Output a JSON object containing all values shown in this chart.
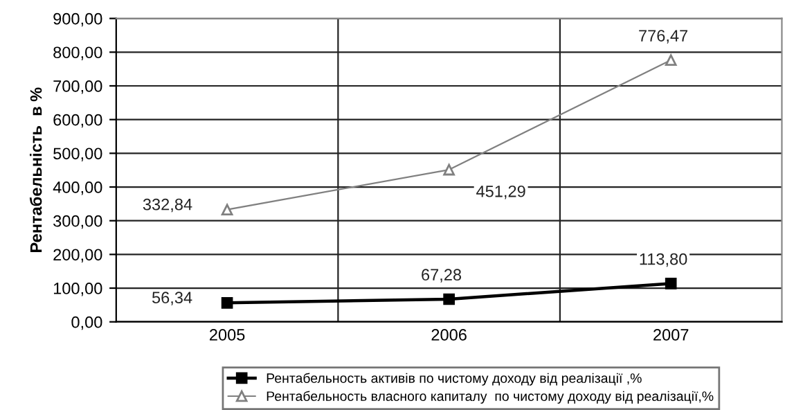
{
  "chart_data": {
    "type": "line",
    "ylabel": "Рентабельність  в %",
    "categories": [
      "2005",
      "2006",
      "2007"
    ],
    "series": [
      {
        "name": "Рентабельность активів по чистому доходу від реалізації ,%",
        "color": "#000000",
        "marker": "square",
        "values": [
          56.34,
          67.28,
          113.8
        ],
        "value_labels": [
          "56,34",
          "67,28",
          "113,80"
        ]
      },
      {
        "name": "Рентабельность власного капиталу  по чистому доходу від реалізації,%",
        "color": "#808080",
        "marker": "triangle",
        "values": [
          332.84,
          451.29,
          776.47
        ],
        "value_labels": [
          "332,84",
          "451,29",
          "776,47"
        ]
      }
    ],
    "ylim": [
      0,
      900
    ],
    "yticks": [
      {
        "value": 0,
        "label": "0,00"
      },
      {
        "value": 100,
        "label": "100,00"
      },
      {
        "value": 200,
        "label": "200,00"
      },
      {
        "value": 300,
        "label": "300,00"
      },
      {
        "value": 400,
        "label": "400,00"
      },
      {
        "value": 500,
        "label": "500,00"
      },
      {
        "value": 600,
        "label": "600,00"
      },
      {
        "value": 700,
        "label": "700,00"
      },
      {
        "value": 800,
        "label": "800,00"
      },
      {
        "value": 900,
        "label": "900,00"
      }
    ],
    "grid": true,
    "legend": "bottom"
  }
}
